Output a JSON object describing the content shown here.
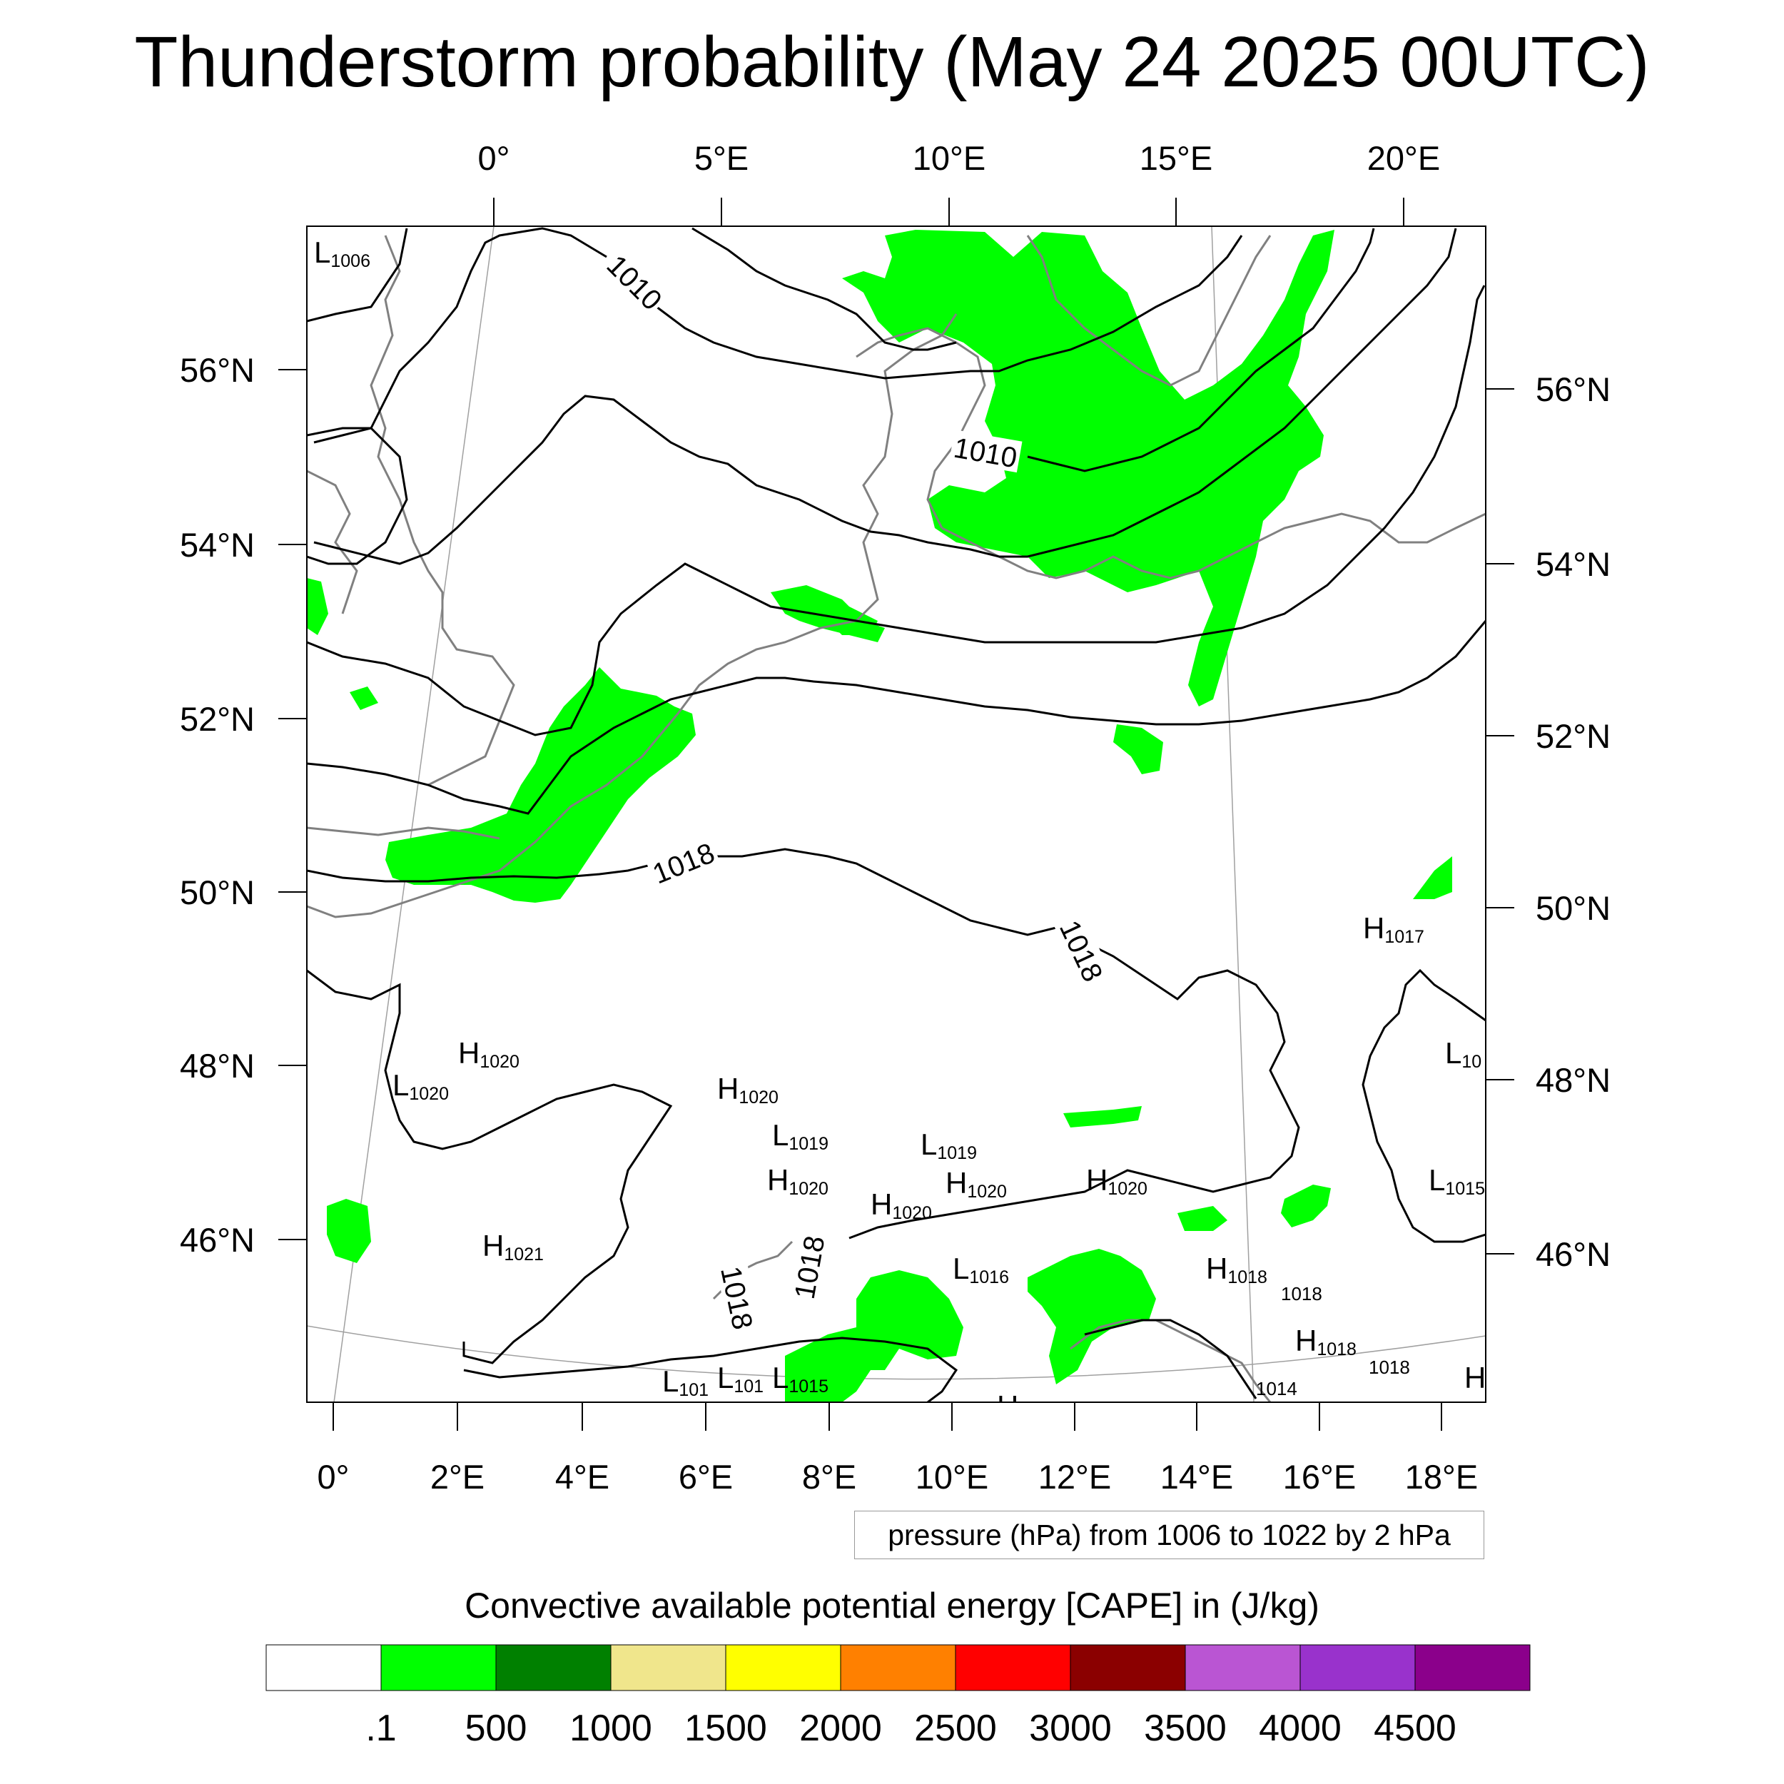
{
  "title": "Thunderstorm probability (May 24 2025 00UTC)",
  "top_axis_labels": [
    "0°",
    "5°E",
    "10°E",
    "15°E",
    "20°E"
  ],
  "bottom_axis_labels": [
    "0°",
    "2°E",
    "4°E",
    "6°E",
    "8°E",
    "10°E",
    "12°E",
    "14°E",
    "16°E",
    "18°E"
  ],
  "left_axis_labels": [
    "56°N",
    "54°N",
    "52°N",
    "50°N",
    "48°N",
    "46°N"
  ],
  "right_axis_labels": [
    "56°N",
    "54°N",
    "52°N",
    "50°N",
    "48°N",
    "46°N"
  ],
  "isobar_labels": [
    "1010",
    "1010",
    "1018",
    "1018",
    "1018",
    "1018"
  ],
  "pressure_centers": [
    {
      "type": "L",
      "value": "1006"
    },
    {
      "type": "H",
      "value": "1020"
    },
    {
      "type": "L",
      "value": "1020"
    },
    {
      "type": "H",
      "value": "1020"
    },
    {
      "type": "L",
      "value": "1019"
    },
    {
      "type": "L",
      "value": "1019"
    },
    {
      "type": "H",
      "value": "1020"
    },
    {
      "type": "H",
      "value": "1020"
    },
    {
      "type": "H",
      "value": "1020"
    },
    {
      "type": "H",
      "value": "1020"
    },
    {
      "type": "H",
      "value": "1021"
    },
    {
      "type": "L",
      "value": "1016"
    },
    {
      "type": "H",
      "value": "1018"
    },
    {
      "type": "H",
      "value": "1018"
    },
    {
      "type": "H",
      "value": "1017"
    },
    {
      "type": "L",
      "value": "10"
    },
    {
      "type": "L",
      "value": "1015"
    },
    {
      "type": "L",
      "value": "101"
    },
    {
      "type": "L",
      "value": "101"
    },
    {
      "type": "L",
      "value": "1015"
    },
    {
      "type": "H",
      "value": ""
    }
  ],
  "loose_values": [
    "1018",
    "1018",
    "1014"
  ],
  "contour_note": "pressure (hPa) from 1006 to 1022 by 2 hPa",
  "colorbar": {
    "title": "Convective available potential energy [CAPE] in (J/kg)",
    "labels": [
      ".1",
      "500",
      "1000",
      "1500",
      "2000",
      "2500",
      "3000",
      "3500",
      "4000",
      "4500"
    ],
    "colors": [
      "#ffffff",
      "#00ff00",
      "#008000",
      "#f0e68c",
      "#ffff00",
      "#ff8000",
      "#ff0000",
      "#8b0000",
      "#ba55d3",
      "#9932cc",
      "#8b008b"
    ]
  },
  "colors": {
    "cape_area": "#00ff00",
    "coastline": "#808080",
    "isobar": "#000000",
    "graticule": "#a0a0a0"
  }
}
